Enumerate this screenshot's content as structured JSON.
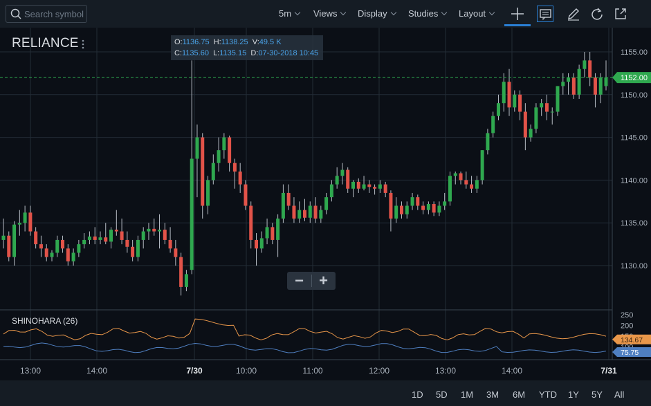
{
  "toolbar": {
    "search_placeholder": "Search symbol",
    "menus": [
      "5m",
      "Views",
      "Display",
      "Studies",
      "Layout"
    ]
  },
  "chart_data": {
    "type": "candlestick",
    "symbol": "RELIANCE",
    "ohlc": {
      "open": "1136.75",
      "high": "1138.25",
      "volume": "49.5 K",
      "close": "1135.60",
      "low": "1135.15",
      "date": "07-30-2018 10:45"
    },
    "last_price": "1152.00",
    "ylim": [
      1126,
      1157
    ],
    "y_ticks": [
      "1155.00",
      "1150.00",
      "1145.00",
      "1140.00",
      "1135.00",
      "1130.00"
    ],
    "x_ticks": [
      "13:00",
      "14:00",
      "7/30",
      "10:00",
      "11:00",
      "12:00",
      "13:00",
      "14:00",
      "7/31"
    ],
    "candles": [
      [
        1133.0,
        1135.5,
        1132.0,
        1133.5
      ],
      [
        1133.5,
        1134.0,
        1130.5,
        1131.0
      ],
      [
        1131.0,
        1135.2,
        1130.0,
        1134.8
      ],
      [
        1134.8,
        1136.5,
        1133.5,
        1135.0
      ],
      [
        1135.0,
        1137.0,
        1134.0,
        1136.2
      ],
      [
        1136.2,
        1137.0,
        1133.5,
        1134.0
      ],
      [
        1134.0,
        1134.5,
        1132.0,
        1132.5
      ],
      [
        1132.5,
        1133.5,
        1131.0,
        1132.0
      ],
      [
        1132.0,
        1132.5,
        1130.5,
        1131.0
      ],
      [
        1131.0,
        1131.8,
        1130.5,
        1131.5
      ],
      [
        1131.5,
        1133.5,
        1131.0,
        1133.0
      ],
      [
        1133.0,
        1133.5,
        1131.5,
        1132.0
      ],
      [
        1132.0,
        1132.5,
        1130.0,
        1130.5
      ],
      [
        1130.5,
        1132.0,
        1130.0,
        1131.5
      ],
      [
        1131.5,
        1133.0,
        1131.0,
        1132.5
      ],
      [
        1132.5,
        1133.8,
        1132.0,
        1133.0
      ],
      [
        1133.0,
        1134.0,
        1132.5,
        1133.4
      ],
      [
        1133.4,
        1134.5,
        1132.5,
        1133.0
      ],
      [
        1133.0,
        1134.0,
        1132.5,
        1133.3
      ],
      [
        1133.3,
        1135.0,
        1132.5,
        1132.8
      ],
      [
        1132.8,
        1134.5,
        1132.0,
        1134.2
      ],
      [
        1134.2,
        1136.5,
        1133.5,
        1134.0
      ],
      [
        1134.0,
        1135.5,
        1132.5,
        1133.0
      ],
      [
        1133.0,
        1134.0,
        1131.5,
        1132.2
      ],
      [
        1132.2,
        1133.0,
        1130.5,
        1131.0
      ],
      [
        1131.0,
        1133.5,
        1130.5,
        1133.0
      ],
      [
        1133.0,
        1134.5,
        1132.0,
        1134.0
      ],
      [
        1134.0,
        1135.0,
        1133.0,
        1134.3
      ],
      [
        1134.3,
        1135.5,
        1133.5,
        1134.0
      ],
      [
        1134.0,
        1136.0,
        1132.0,
        1134.2
      ],
      [
        1134.2,
        1135.0,
        1132.5,
        1133.0
      ],
      [
        1133.0,
        1134.5,
        1131.5,
        1132.0
      ],
      [
        1132.0,
        1133.0,
        1130.0,
        1131.0
      ],
      [
        1131.0,
        1131.5,
        1126.5,
        1127.5
      ],
      [
        1127.5,
        1129.5,
        1127.0,
        1129.0
      ],
      [
        1129.5,
        1154.0,
        1129.0,
        1142.5
      ],
      [
        1142.5,
        1146.5,
        1138.0,
        1145.0
      ],
      [
        1145.0,
        1145.5,
        1135.5,
        1137.0
      ],
      [
        1137.0,
        1140.5,
        1136.0,
        1140.0
      ],
      [
        1140.0,
        1143.0,
        1139.5,
        1142.0
      ],
      [
        1142.0,
        1145.0,
        1141.0,
        1143.5
      ],
      [
        1143.5,
        1145.5,
        1142.5,
        1145.0
      ],
      [
        1145.0,
        1145.2,
        1141.0,
        1142.0
      ],
      [
        1142.0,
        1142.5,
        1139.0,
        1141.0
      ],
      [
        1141.0,
        1142.0,
        1138.5,
        1139.5
      ],
      [
        1139.5,
        1140.0,
        1136.5,
        1137.0
      ],
      [
        1137.0,
        1137.5,
        1132.0,
        1133.0
      ],
      [
        1133.0,
        1133.8,
        1130.0,
        1132.0
      ],
      [
        1132.0,
        1134.0,
        1131.5,
        1133.2
      ],
      [
        1133.2,
        1135.5,
        1132.5,
        1134.5
      ],
      [
        1134.5,
        1135.0,
        1132.5,
        1133.0
      ],
      [
        1133.0,
        1136.0,
        1131.0,
        1135.5
      ],
      [
        1135.5,
        1139.5,
        1135.0,
        1138.5
      ],
      [
        1138.5,
        1139.5,
        1136.5,
        1137.0
      ],
      [
        1137.0,
        1138.0,
        1135.0,
        1135.5
      ],
      [
        1135.5,
        1137.5,
        1135.0,
        1136.5
      ],
      [
        1136.5,
        1137.8,
        1135.2,
        1135.6
      ],
      [
        1135.6,
        1137.5,
        1135.0,
        1137.0
      ],
      [
        1137.0,
        1138.0,
        1135.0,
        1135.5
      ],
      [
        1135.5,
        1137.0,
        1135.0,
        1136.5
      ],
      [
        1136.5,
        1138.5,
        1136.0,
        1138.0
      ],
      [
        1138.0,
        1140.0,
        1137.5,
        1139.5
      ],
      [
        1139.5,
        1141.5,
        1139.0,
        1140.5
      ],
      [
        1140.5,
        1142.0,
        1139.5,
        1141.2
      ],
      [
        1141.2,
        1141.5,
        1138.5,
        1139.0
      ],
      [
        1139.0,
        1140.0,
        1138.0,
        1139.8
      ],
      [
        1139.8,
        1140.2,
        1138.5,
        1139.0
      ],
      [
        1139.0,
        1140.5,
        1138.8,
        1139.5
      ],
      [
        1139.5,
        1140.0,
        1138.5,
        1139.2
      ],
      [
        1139.2,
        1139.5,
        1138.3,
        1139.0
      ],
      [
        1139.0,
        1140.0,
        1138.5,
        1139.5
      ],
      [
        1139.5,
        1139.8,
        1138.0,
        1138.5
      ],
      [
        1138.5,
        1138.8,
        1134.0,
        1135.5
      ],
      [
        1135.5,
        1138.0,
        1135.0,
        1137.0
      ],
      [
        1137.0,
        1137.5,
        1135.5,
        1136.0
      ],
      [
        1136.0,
        1137.5,
        1135.5,
        1137.0
      ],
      [
        1137.0,
        1138.5,
        1136.5,
        1138.0
      ],
      [
        1138.0,
        1138.3,
        1136.5,
        1137.0
      ],
      [
        1137.0,
        1137.5,
        1136.0,
        1136.5
      ],
      [
        1136.5,
        1137.5,
        1136.0,
        1137.2
      ],
      [
        1137.2,
        1137.5,
        1135.8,
        1136.2
      ],
      [
        1136.2,
        1137.5,
        1135.8,
        1137.0
      ],
      [
        1137.0,
        1138.5,
        1136.5,
        1137.5
      ],
      [
        1137.5,
        1141.0,
        1137.0,
        1140.5
      ],
      [
        1140.5,
        1141.0,
        1139.5,
        1140.8
      ],
      [
        1140.8,
        1141.0,
        1139.5,
        1140.0
      ],
      [
        1140.0,
        1141.0,
        1139.0,
        1139.5
      ],
      [
        1139.5,
        1140.5,
        1138.5,
        1139.0
      ],
      [
        1139.0,
        1140.5,
        1138.5,
        1140.0
      ],
      [
        1140.0,
        1143.5,
        1139.5,
        1143.5
      ],
      [
        1143.5,
        1146.0,
        1143.0,
        1145.5
      ],
      [
        1145.5,
        1148.0,
        1145.0,
        1147.5
      ],
      [
        1147.5,
        1150.0,
        1147.0,
        1149.0
      ],
      [
        1149.0,
        1152.5,
        1148.0,
        1151.5
      ],
      [
        1151.5,
        1153.0,
        1147.5,
        1148.5
      ],
      [
        1148.5,
        1150.5,
        1148.0,
        1150.0
      ],
      [
        1150.0,
        1150.5,
        1147.0,
        1148.0
      ],
      [
        1148.0,
        1149.0,
        1143.5,
        1145.0
      ],
      [
        1145.0,
        1146.5,
        1144.5,
        1146.0
      ],
      [
        1146.0,
        1149.0,
        1145.5,
        1148.5
      ],
      [
        1148.5,
        1149.5,
        1147.5,
        1149.0
      ],
      [
        1149.0,
        1150.0,
        1147.0,
        1148.0
      ],
      [
        1148.0,
        1148.5,
        1146.5,
        1148.0
      ],
      [
        1148.0,
        1151.0,
        1147.5,
        1151.0
      ],
      [
        1151.0,
        1152.5,
        1150.0,
        1151.5
      ],
      [
        1151.5,
        1152.5,
        1150.0,
        1152.0
      ],
      [
        1152.0,
        1152.5,
        1149.5,
        1150.0
      ],
      [
        1150.0,
        1153.5,
        1149.5,
        1153.0
      ],
      [
        1153.0,
        1155.0,
        1152.0,
        1154.0
      ],
      [
        1154.0,
        1155.0,
        1151.0,
        1152.0
      ],
      [
        1152.0,
        1152.5,
        1148.5,
        1150.0
      ],
      [
        1150.0,
        1152.5,
        1149.0,
        1152.0
      ],
      [
        1151.0,
        1154.0,
        1150.5,
        1152.0
      ]
    ],
    "indicator": {
      "name": "SHINOHARA (26)",
      "y_ticks": [
        "250",
        "200",
        "150",
        "100"
      ],
      "ylim": [
        50,
        260
      ],
      "last_values": [
        "134.67",
        "75.75"
      ],
      "series_colors": [
        "#e9974a",
        "#4f7fc0"
      ]
    }
  },
  "colors": {
    "up": "#2fa84f",
    "down": "#e25349",
    "grid": "#232c36",
    "accent": "#2a7fd4"
  },
  "timeframes": [
    "1D",
    "5D",
    "1M",
    "3M",
    "6M",
    "YTD",
    "1Y",
    "5Y",
    "All"
  ]
}
